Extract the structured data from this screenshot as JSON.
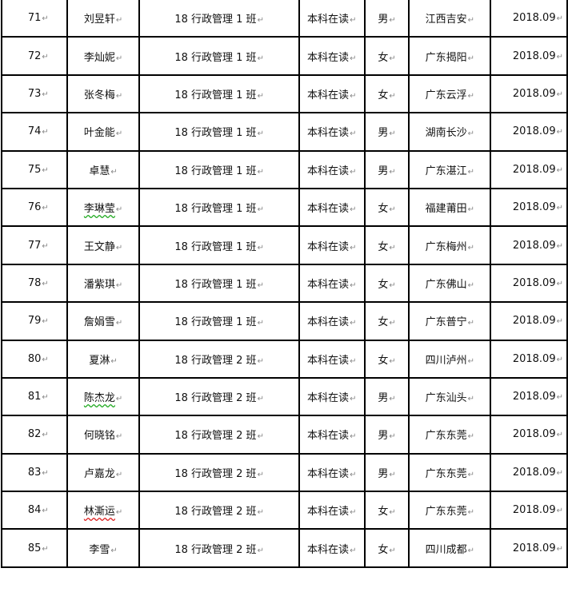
{
  "paragraph_mark": "↵",
  "rows": [
    {
      "no": "71",
      "name": "刘昱轩",
      "class": "18 行政管理 1 班",
      "status": "本科在读",
      "gender": "男",
      "origin": "江西吉安",
      "year": "2018.09"
    },
    {
      "no": "72",
      "name": "李灿妮",
      "class": "18 行政管理 1 班",
      "status": "本科在读",
      "gender": "女",
      "origin": "广东揭阳",
      "year": "2018.09"
    },
    {
      "no": "73",
      "name": "张冬梅",
      "class": "18 行政管理 1 班",
      "status": "本科在读",
      "gender": "女",
      "origin": "广东云浮",
      "year": "2018.09"
    },
    {
      "no": "74",
      "name": "叶金能",
      "class": "18 行政管理 1 班",
      "status": "本科在读",
      "gender": "男",
      "origin": "湖南长沙",
      "year": "2018.09"
    },
    {
      "no": "75",
      "name": "卓慧",
      "class": "18 行政管理 1 班",
      "status": "本科在读",
      "gender": "男",
      "origin": "广东湛江",
      "year": "2018.09"
    },
    {
      "no": "76",
      "name": "李琳莹",
      "class": "18 行政管理 1 班",
      "status": "本科在读",
      "gender": "女",
      "origin": "福建莆田",
      "year": "2018.09",
      "squiggle": "green"
    },
    {
      "no": "77",
      "name": "王文静",
      "class": "18 行政管理 1 班",
      "status": "本科在读",
      "gender": "女",
      "origin": "广东梅州",
      "year": "2018.09"
    },
    {
      "no": "78",
      "name": "潘紫琪",
      "class": "18 行政管理 1 班",
      "status": "本科在读",
      "gender": "女",
      "origin": "广东佛山",
      "year": "2018.09"
    },
    {
      "no": "79",
      "name": "詹娟雪",
      "class": "18 行政管理 1 班",
      "status": "本科在读",
      "gender": "女",
      "origin": "广东普宁",
      "year": "2018.09"
    },
    {
      "no": "80",
      "name": "夏淋",
      "class": "18 行政管理 2 班",
      "status": "本科在读",
      "gender": "女",
      "origin": "四川泸州",
      "year": "2018.09"
    },
    {
      "no": "81",
      "name": "陈杰龙",
      "class": "18 行政管理 2 班",
      "status": "本科在读",
      "gender": "男",
      "origin": "广东汕头",
      "year": "2018.09",
      "squiggle": "green"
    },
    {
      "no": "82",
      "name": "何晓铭",
      "class": "18 行政管理 2 班",
      "status": "本科在读",
      "gender": "男",
      "origin": "广东东莞",
      "year": "2018.09"
    },
    {
      "no": "83",
      "name": "卢嘉龙",
      "class": "18 行政管理 2 班",
      "status": "本科在读",
      "gender": "男",
      "origin": "广东东莞",
      "year": "2018.09"
    },
    {
      "no": "84",
      "name": "林澌运",
      "class": "18 行政管理 2 班",
      "status": "本科在读",
      "gender": "女",
      "origin": "广东东莞",
      "year": "2018.09",
      "squiggle": "red"
    },
    {
      "no": "85",
      "name": "李雪",
      "class": "18 行政管理 2 班",
      "status": "本科在读",
      "gender": "女",
      "origin": "四川成都",
      "year": "2018.09"
    }
  ]
}
